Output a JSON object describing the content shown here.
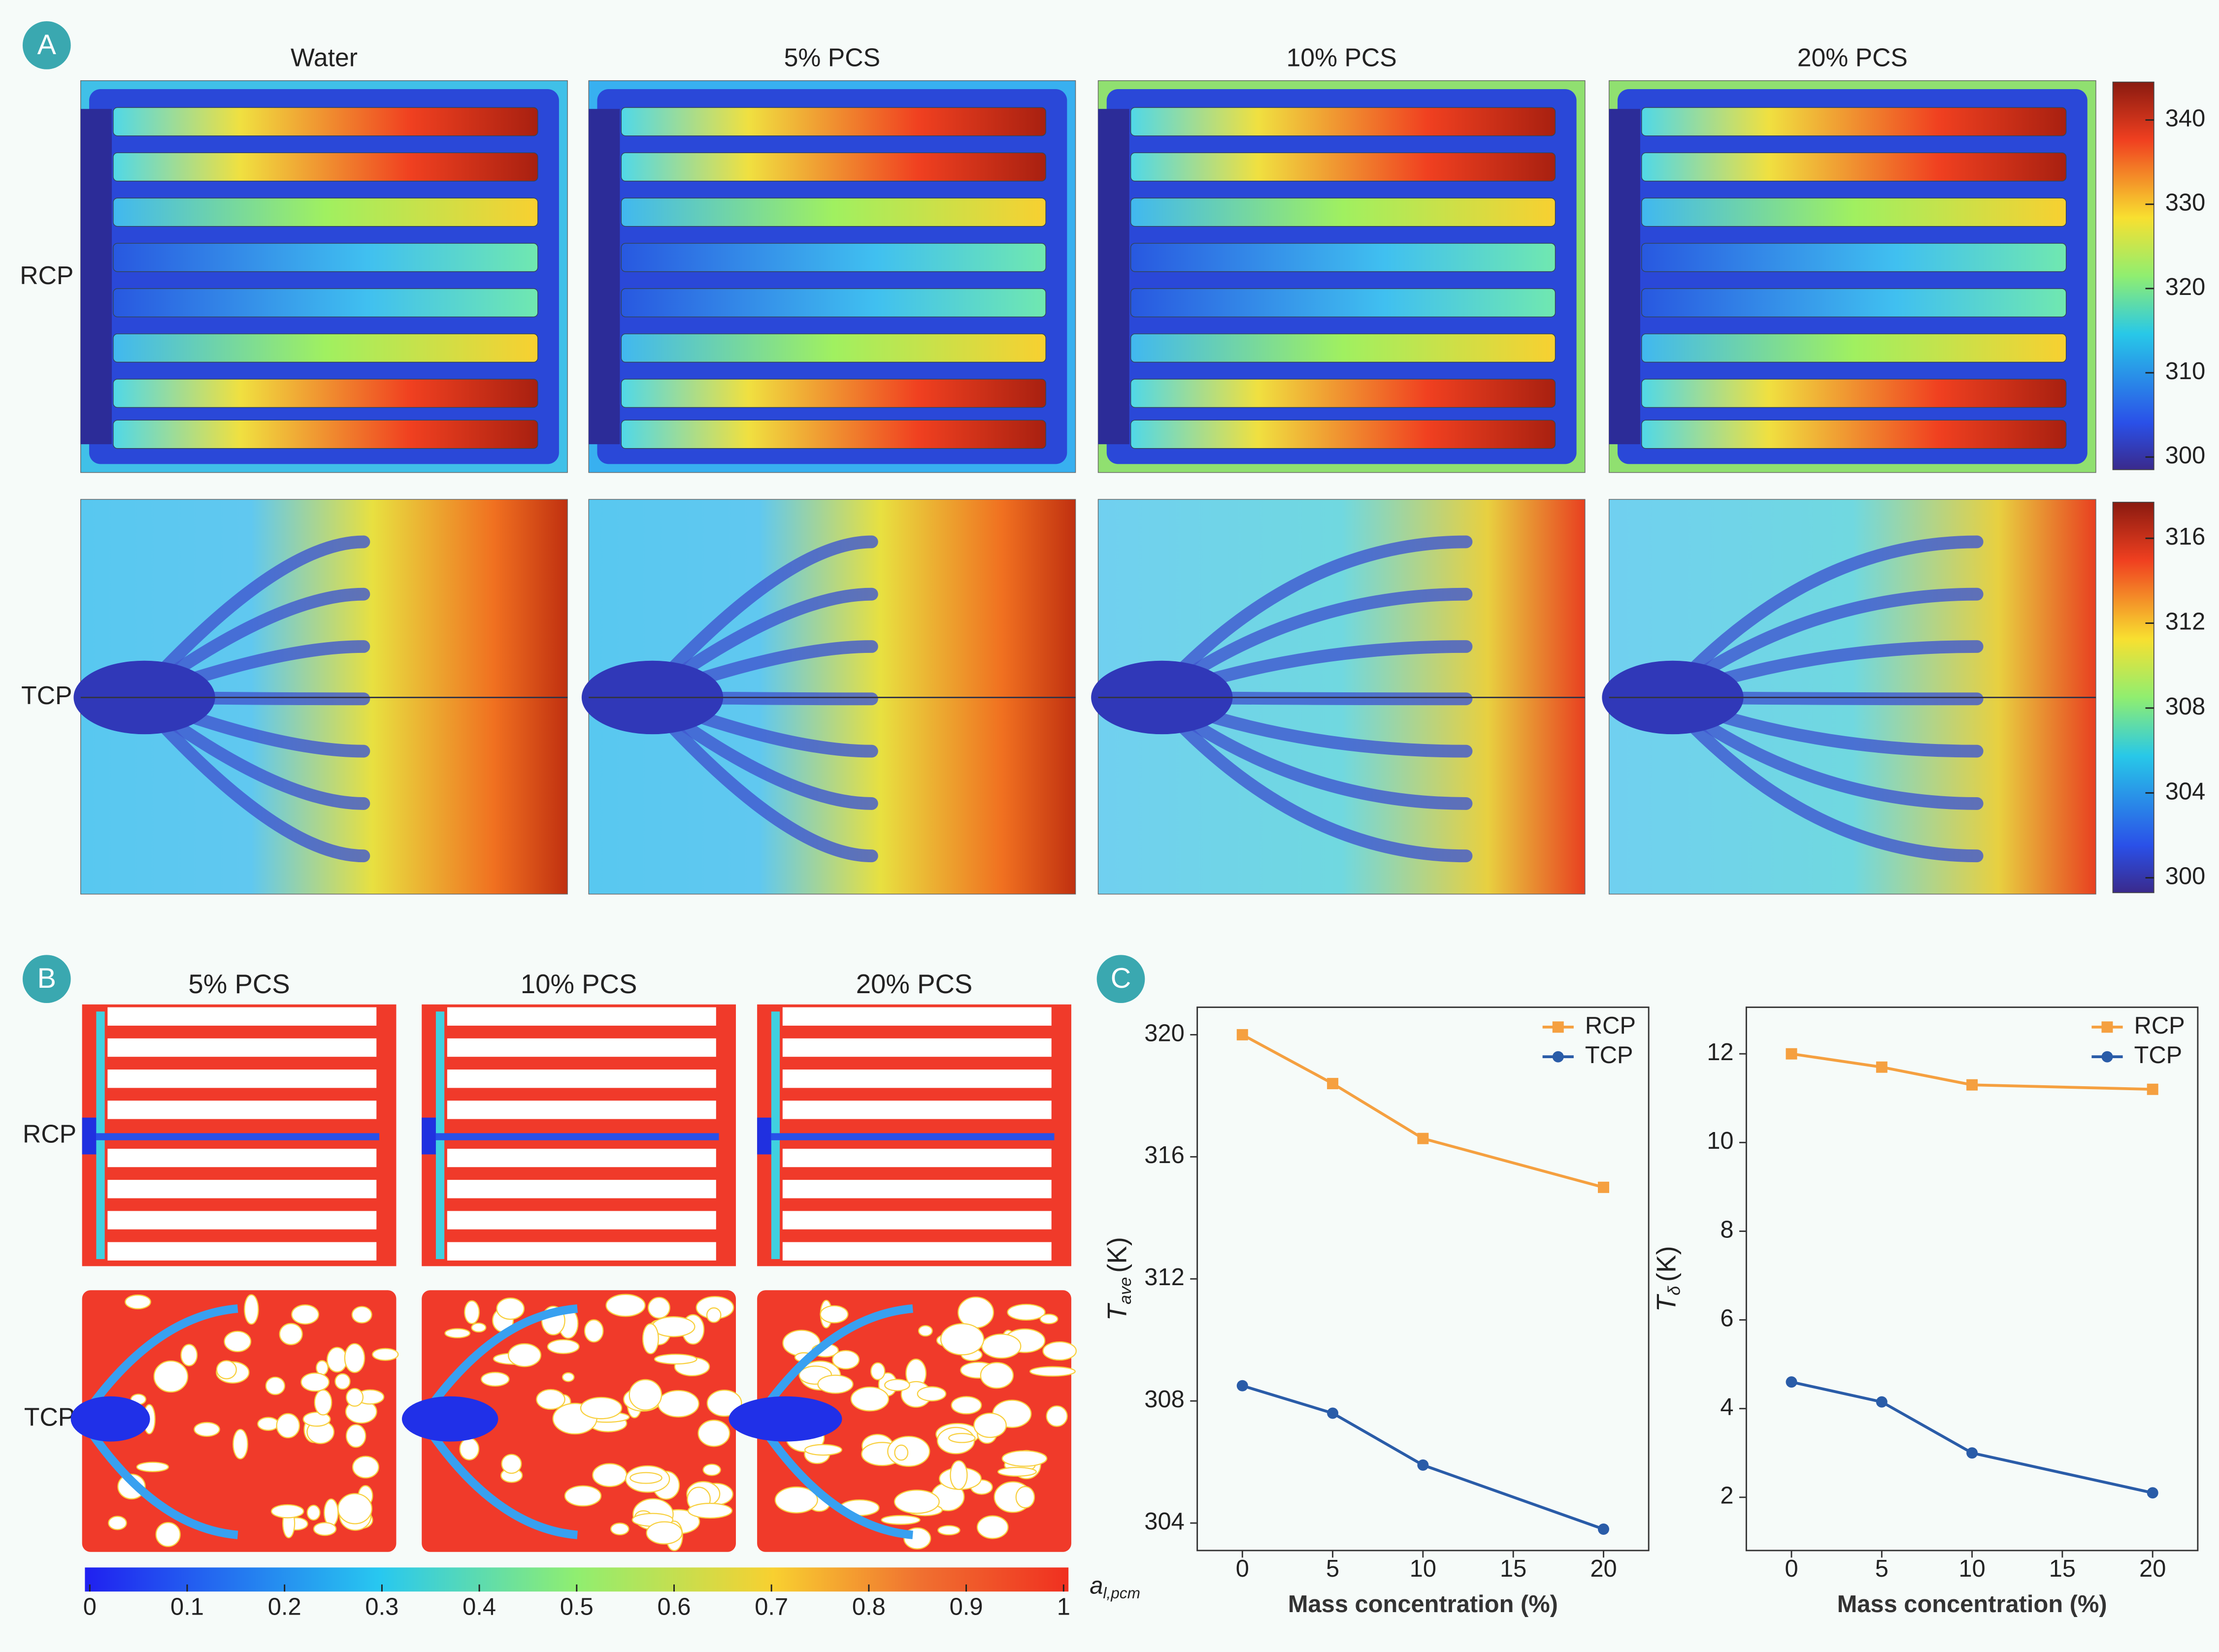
{
  "panel_labels": [
    "A",
    "B",
    "C"
  ],
  "chart_data": [
    {
      "type": "heatmap",
      "columns": [
        "Water",
        "5% PCS",
        "10% PCS",
        "20% PCS"
      ],
      "rows": [
        "RCP",
        "TCP"
      ],
      "colorbars": [
        {
          "clim": [
            298.5,
            344.5
          ],
          "cticks": [
            300,
            310,
            320,
            330,
            340
          ]
        },
        {
          "clim": [
            299.3,
            317.7
          ],
          "cticks": [
            300,
            304,
            308,
            312,
            316
          ]
        }
      ]
    },
    {
      "type": "heatmap",
      "columns": [
        "5% PCS",
        "10% PCS",
        "20% PCS"
      ],
      "rows": [
        "RCP",
        "TCP"
      ],
      "colorbar": {
        "label": "a",
        "label_sub": "l,pcm",
        "clim": [
          -0.005,
          1.005
        ],
        "cticks": [
          0,
          0.1,
          0.2,
          0.3,
          0.4,
          0.5,
          0.6,
          0.7,
          0.8,
          0.9,
          1
        ]
      }
    },
    {
      "type": "line",
      "xlabel": "Mass concentration (%)",
      "ylabel": "T",
      "ylabel_sub": "ave",
      "ylabel_unit": "(K)",
      "x": [
        0,
        5,
        10,
        20
      ],
      "xlim": [
        -2.5,
        22.5
      ],
      "xticks": [
        0,
        5,
        10,
        15,
        20
      ],
      "ylim": [
        303.1,
        320.9
      ],
      "yticks": [
        304,
        308,
        312,
        316,
        320
      ],
      "legend": "upper right",
      "series": [
        {
          "name": "RCP",
          "color": "#f5a040",
          "marker": "square",
          "values": [
            320,
            318.4,
            316.6,
            315
          ]
        },
        {
          "name": "TCP",
          "color": "#2a5ca8",
          "marker": "circle",
          "values": [
            308.5,
            307.6,
            305.9,
            303.8
          ]
        }
      ]
    },
    {
      "type": "line",
      "xlabel": "Mass concentration (%)",
      "ylabel": "T",
      "ylabel_sub": "δ",
      "ylabel_unit": "(K)",
      "x": [
        0,
        5,
        10,
        20
      ],
      "xlim": [
        -2.5,
        22.5
      ],
      "xticks": [
        0,
        5,
        10,
        15,
        20
      ],
      "ylim": [
        0.8,
        13.05
      ],
      "yticks": [
        2,
        4,
        6,
        8,
        10,
        12
      ],
      "legend": "upper right",
      "series": [
        {
          "name": "RCP",
          "color": "#f5a040",
          "marker": "square",
          "values": [
            12,
            11.7,
            11.3,
            11.2
          ]
        },
        {
          "name": "TCP",
          "color": "#2a5ca8",
          "marker": "circle",
          "values": [
            4.6,
            4.15,
            3,
            2.1
          ]
        }
      ]
    }
  ]
}
